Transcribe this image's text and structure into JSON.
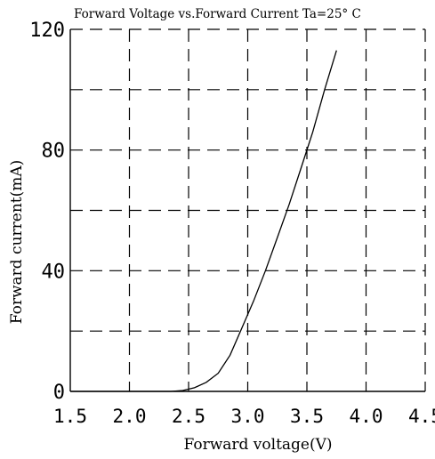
{
  "chart_data": {
    "type": "line",
    "title": "Forward Voltage vs.Forward Current Ta=25° C",
    "xlabel": "Forward voltage(V)",
    "ylabel": "Forward current(mA)",
    "xlim": [
      1.5,
      4.5
    ],
    "ylim": [
      0,
      120
    ],
    "xticks": [
      1.5,
      2.0,
      2.5,
      3.0,
      3.5,
      4.0,
      4.5
    ],
    "xtick_labels": [
      "1.5",
      "2.0",
      "2.5",
      "3.0",
      "3.5",
      "4.0",
      "4.5"
    ],
    "yticks": [
      0,
      40,
      80,
      120
    ],
    "ytick_labels": [
      "0",
      "40",
      "80",
      "120"
    ],
    "grid": true,
    "grid_style": "dashed",
    "series": [
      {
        "x": [
          2.35,
          2.45,
          2.55,
          2.65,
          2.75,
          2.85,
          2.95,
          3.05,
          3.15,
          3.25,
          3.35,
          3.45,
          3.55,
          3.65,
          3.75
        ],
        "y": [
          0,
          0.3,
          1.2,
          3,
          6,
          12,
          21,
          30,
          40,
          51,
          62,
          74,
          86,
          100,
          113
        ]
      }
    ]
  }
}
